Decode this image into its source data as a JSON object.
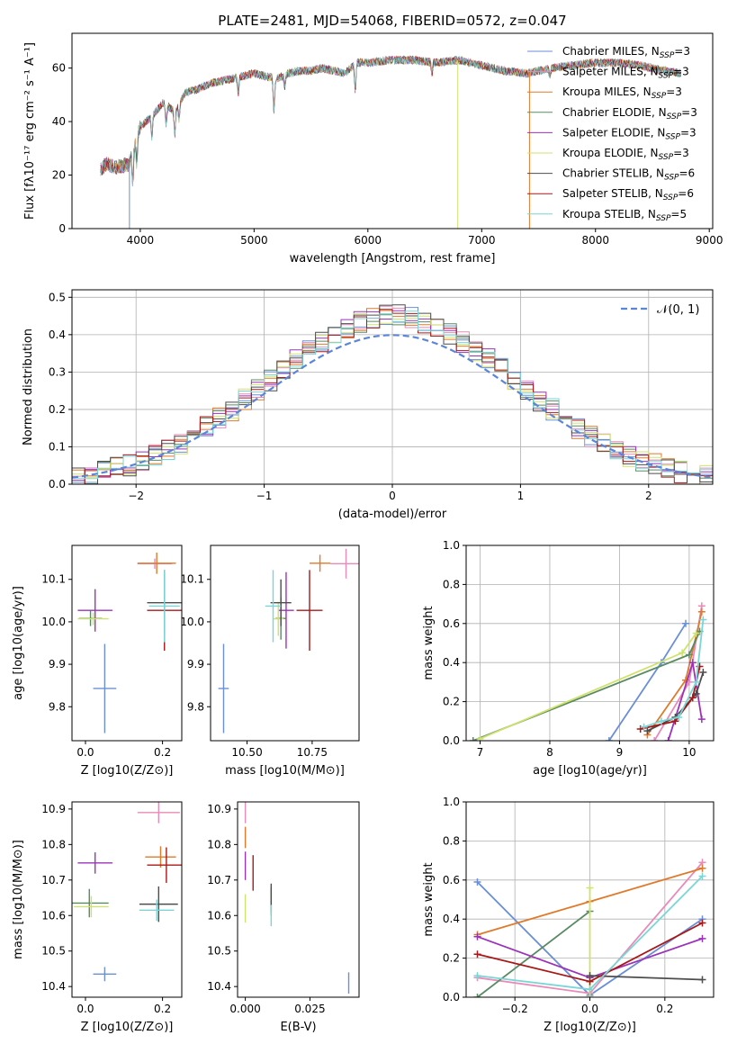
{
  "figure": {
    "title": "PLATE=2481, MJD=54068, FIBERID=0572, z=0.047",
    "colors": [
      "#6a8fd6",
      "#e98ab8",
      "#e07a2a",
      "#5a8a62",
      "#9b33b8",
      "#cfe26c",
      "#4d4d4d",
      "#a81818",
      "#7ad6d6"
    ]
  },
  "chart_data": [
    {
      "id": "spectrum",
      "type": "line",
      "xlabel": "wavelength [Angstrom, rest frame]",
      "ylabel": "Flux [fλ10⁻¹⁷ erg cm⁻² s⁻¹ A⁻¹]",
      "xlim": [
        3400,
        9030
      ],
      "ylim": [
        0,
        73
      ],
      "xticks": [
        4000,
        5000,
        6000,
        7000,
        8000,
        9000
      ],
      "yticks": [
        0,
        20,
        40,
        60
      ],
      "continuum": {
        "x": [
          3650,
          3700,
          3800,
          3900,
          3950,
          4000,
          4050,
          4100,
          4200,
          4300,
          4400,
          4500,
          4600,
          4700,
          4800,
          4900,
          5000,
          5100,
          5200,
          5300,
          5400,
          5500,
          5600,
          5700,
          5800,
          5900,
          6000,
          6200,
          6400,
          6600,
          6800,
          7000,
          7200,
          7400,
          7600,
          7800,
          8000,
          8200,
          8400,
          8600,
          8750
        ],
        "y": [
          22,
          24,
          23,
          24,
          32,
          38,
          40,
          42,
          47,
          44,
          51,
          52,
          54,
          55,
          56,
          57,
          58,
          57,
          56,
          58,
          59,
          59,
          60,
          59,
          58,
          62,
          62,
          63,
          63,
          62,
          63,
          61,
          59,
          58,
          60,
          61,
          62,
          62,
          61,
          59,
          58
        ]
      },
      "absorption_lines": [
        [
          3934,
          12
        ],
        [
          3969,
          10
        ],
        [
          4102,
          8
        ],
        [
          4227,
          7
        ],
        [
          4304,
          9
        ],
        [
          4341,
          6
        ],
        [
          4861,
          6
        ],
        [
          5175,
          12
        ],
        [
          5270,
          5
        ],
        [
          5890,
          10
        ],
        [
          6563,
          4
        ],
        [
          7600,
          3
        ]
      ],
      "dropouts": [
        3905,
        6790,
        7420
      ],
      "series": [
        {
          "name": "Chabrier MILES, N_SSP=3",
          "legend_main": "Chabrier MILES, N",
          "legend_sub": "SSP",
          "legend_tail": "=3"
        },
        {
          "name": "Salpeter MILES, N_SSP=3",
          "legend_main": "Salpeter MILES, N",
          "legend_sub": "SSP",
          "legend_tail": "=3"
        },
        {
          "name": "Kroupa MILES, N_SSP=3",
          "legend_main": "Kroupa MILES, N",
          "legend_sub": "SSP",
          "legend_tail": "=3"
        },
        {
          "name": "Chabrier ELODIE, N_SSP=3",
          "legend_main": "Chabrier ELODIE, N",
          "legend_sub": "SSP",
          "legend_tail": "=3"
        },
        {
          "name": "Salpeter ELODIE, N_SSP=3",
          "legend_main": "Salpeter ELODIE, N",
          "legend_sub": "SSP",
          "legend_tail": "=3"
        },
        {
          "name": "Kroupa ELODIE, N_SSP=3",
          "legend_main": "Kroupa ELODIE, N",
          "legend_sub": "SSP",
          "legend_tail": "=3"
        },
        {
          "name": "Chabrier STELIB, N_SSP=6",
          "legend_main": "Chabrier STELIB, N",
          "legend_sub": "SSP",
          "legend_tail": "=6"
        },
        {
          "name": "Salpeter STELIB, N_SSP=6",
          "legend_main": "Salpeter STELIB, N",
          "legend_sub": "SSP",
          "legend_tail": "=6"
        },
        {
          "name": "Kroupa STELIB, N_SSP=5",
          "legend_main": "Kroupa STELIB, N",
          "legend_sub": "SSP",
          "legend_tail": "=5"
        }
      ]
    },
    {
      "id": "residuals",
      "type": "line",
      "xlabel": "(data-model)/error",
      "ylabel": "Normed distribution",
      "xlim": [
        -2.5,
        2.5
      ],
      "ylim": [
        0,
        0.52
      ],
      "xticks": [
        -2,
        -1,
        0,
        1,
        2
      ],
      "yticks": [
        0.0,
        0.1,
        0.2,
        0.3,
        0.4,
        0.5
      ],
      "grid": true,
      "legend": "top-right",
      "reference": {
        "name": "N(0,1)",
        "mean": 0,
        "sigma": 1
      }
    },
    {
      "id": "age-vs-Z",
      "type": "scatter",
      "xlabel": "Z [log10(Z/Z⊙)]",
      "ylabel": "age  [log10(age/yr)]",
      "xlim": [
        -0.035,
        0.25
      ],
      "ylim": [
        9.72,
        10.18
      ],
      "xticks": [
        0.0,
        0.2
      ],
      "yticks": [
        9.8,
        9.9,
        10.0,
        10.1
      ],
      "points": [
        {
          "x": 0.05,
          "y": 9.843,
          "xerr": 0.03,
          "yerr": 0.105
        },
        {
          "x": 0.18,
          "y": 10.137,
          "xerr": 0.045,
          "yerr": 0.012
        },
        {
          "x": 0.185,
          "y": 10.138,
          "xerr": 0.05,
          "yerr": 0.025
        },
        {
          "x": 0.013,
          "y": 10.008,
          "xerr": 0.03,
          "yerr": 0.018
        },
        {
          "x": 0.025,
          "y": 10.027,
          "xerr": 0.045,
          "yerr": 0.05
        },
        {
          "x": 0.02,
          "y": 10.007,
          "xerr": 0.04,
          "yerr": 0.015
        },
        {
          "x": 0.205,
          "y": 10.045,
          "xerr": 0.045,
          "yerr": 0.065
        },
        {
          "x": 0.205,
          "y": 10.027,
          "xerr": 0.045,
          "yerr": 0.095
        },
        {
          "x": 0.205,
          "y": 10.037,
          "xerr": 0.04,
          "yerr": 0.085
        }
      ]
    },
    {
      "id": "age-vs-mass",
      "type": "scatter",
      "xlabel": "mass [log10(M/M⊙)]",
      "ylabel": "",
      "xlim": [
        10.36,
        10.93
      ],
      "ylim": [
        9.72,
        10.18
      ],
      "xticks": [
        10.5,
        10.75
      ],
      "yticks": [
        9.8,
        9.9,
        10.0,
        10.1
      ],
      "points": [
        {
          "x": 10.41,
          "y": 9.843,
          "xerr": 0.02,
          "yerr": 0.105
        },
        {
          "x": 10.88,
          "y": 10.137,
          "xerr": 0.06,
          "yerr": 0.035
        },
        {
          "x": 10.78,
          "y": 10.138,
          "xerr": 0.04,
          "yerr": 0.02
        },
        {
          "x": 10.63,
          "y": 10.008,
          "xerr": 0.02,
          "yerr": 0.05
        },
        {
          "x": 10.65,
          "y": 10.027,
          "xerr": 0.03,
          "yerr": 0.09
        },
        {
          "x": 10.62,
          "y": 10.007,
          "xerr": 0.02,
          "yerr": 0.04
        },
        {
          "x": 10.63,
          "y": 10.045,
          "xerr": 0.04,
          "yerr": 0.055
        },
        {
          "x": 10.74,
          "y": 10.027,
          "xerr": 0.05,
          "yerr": 0.095
        },
        {
          "x": 10.6,
          "y": 10.037,
          "xerr": 0.03,
          "yerr": 0.085
        }
      ]
    },
    {
      "id": "weight-vs-age",
      "type": "line",
      "xlabel": "age  [log10(age/yr)]",
      "ylabel": "mass weight",
      "xlim": [
        6.8,
        10.35
      ],
      "ylim": [
        0,
        1.0
      ],
      "xticks": [
        7,
        8,
        9,
        10
      ],
      "yticks": [
        0.0,
        0.2,
        0.4,
        0.6,
        0.8,
        1.0
      ],
      "grid": true,
      "series": [
        {
          "x": [
            8.85,
            9.6,
            9.95
          ],
          "y": [
            0.0,
            0.4,
            0.6
          ]
        },
        {
          "x": [
            9.5,
            10.0,
            10.18
          ],
          "y": [
            0.0,
            0.3,
            0.69
          ]
        },
        {
          "x": [
            9.4,
            9.95,
            10.18
          ],
          "y": [
            0.03,
            0.31,
            0.66
          ]
        },
        {
          "x": [
            6.9,
            10.0,
            10.15
          ],
          "y": [
            0.0,
            0.44,
            0.56
          ]
        },
        {
          "x": [
            9.7,
            10.05,
            10.18
          ],
          "y": [
            0.0,
            0.4,
            0.11
          ]
        },
        {
          "x": [
            7.0,
            9.9,
            10.1
          ],
          "y": [
            0.01,
            0.45,
            0.55
          ]
        },
        {
          "x": [
            9.4,
            9.8,
            10.1,
            10.2
          ],
          "y": [
            0.05,
            0.12,
            0.24,
            0.35
          ]
        },
        {
          "x": [
            9.3,
            9.8,
            10.05,
            10.15
          ],
          "y": [
            0.06,
            0.1,
            0.22,
            0.38
          ]
        },
        {
          "x": [
            9.35,
            9.6,
            9.85,
            10.1,
            10.2
          ],
          "y": [
            0.07,
            0.1,
            0.12,
            0.3,
            0.62
          ]
        }
      ]
    },
    {
      "id": "mass-vs-Z",
      "type": "scatter",
      "xlabel": "Z [log10(Z/Z⊙)]",
      "ylabel": "mass [log10(M/M⊙)]",
      "xlim": [
        -0.035,
        0.25
      ],
      "ylim": [
        10.37,
        10.92
      ],
      "xticks": [
        0.0,
        0.2
      ],
      "yticks": [
        10.4,
        10.5,
        10.6,
        10.7,
        10.8,
        10.9
      ],
      "points": [
        {
          "x": 0.05,
          "y": 10.435,
          "xerr": 0.03,
          "yerr": 0.02
        },
        {
          "x": 0.19,
          "y": 10.89,
          "xerr": 0.055,
          "yerr": 0.03
        },
        {
          "x": 0.195,
          "y": 10.765,
          "xerr": 0.04,
          "yerr": 0.03
        },
        {
          "x": 0.01,
          "y": 10.635,
          "xerr": 0.05,
          "yerr": 0.04
        },
        {
          "x": 0.025,
          "y": 10.748,
          "xerr": 0.045,
          "yerr": 0.03
        },
        {
          "x": 0.015,
          "y": 10.625,
          "xerr": 0.045,
          "yerr": 0.03
        },
        {
          "x": 0.19,
          "y": 10.632,
          "xerr": 0.05,
          "yerr": 0.05
        },
        {
          "x": 0.21,
          "y": 10.742,
          "xerr": 0.05,
          "yerr": 0.05
        },
        {
          "x": 0.185,
          "y": 10.615,
          "xerr": 0.045,
          "yerr": 0.03
        }
      ]
    },
    {
      "id": "mass-vs-ebv",
      "type": "scatter",
      "xlabel": "E(B-V)",
      "ylabel": "",
      "xlim": [
        -0.003,
        0.044
      ],
      "ylim": [
        10.37,
        10.92
      ],
      "xticks": [
        0.0,
        0.025
      ],
      "xtick_labels": [
        "0.000",
        "0.025"
      ],
      "yticks": [
        10.4,
        10.5,
        10.6,
        10.7,
        10.8,
        10.9
      ],
      "points": [
        {
          "x": 0.04,
          "y": 10.41,
          "xerr": 0,
          "yerr": 0.03
        },
        {
          "x": 0.0,
          "y": 10.89,
          "xerr": 0,
          "yerr": 0.03
        },
        {
          "x": 0.0,
          "y": 10.82,
          "xerr": 0,
          "yerr": 0.03
        },
        {
          "x": 0.01,
          "y": 10.64,
          "xerr": 0,
          "yerr": 0.04
        },
        {
          "x": 0.0,
          "y": 10.74,
          "xerr": 0,
          "yerr": 0.04
        },
        {
          "x": 0.0,
          "y": 10.62,
          "xerr": 0,
          "yerr": 0.04
        },
        {
          "x": 0.01,
          "y": 10.65,
          "xerr": 0,
          "yerr": 0.04
        },
        {
          "x": 0.003,
          "y": 10.72,
          "xerr": 0,
          "yerr": 0.05
        },
        {
          "x": 0.01,
          "y": 10.6,
          "xerr": 0,
          "yerr": 0.03
        }
      ]
    },
    {
      "id": "weight-vs-Z",
      "type": "line",
      "xlabel": "Z [log10(Z/Z⊙)]",
      "ylabel": "mass weight",
      "xlim": [
        -0.33,
        0.33
      ],
      "ylim": [
        0,
        1.0
      ],
      "xticks": [
        -0.2,
        0.0,
        0.2
      ],
      "yticks": [
        0.0,
        0.2,
        0.4,
        0.6,
        0.8,
        1.0
      ],
      "grid": true,
      "series": [
        {
          "x": [
            -0.3,
            0.0,
            0.3
          ],
          "y": [
            0.59,
            0.01,
            0.4
          ]
        },
        {
          "x": [
            -0.3,
            0.0,
            0.3
          ],
          "y": [
            0.1,
            0.02,
            0.69
          ]
        },
        {
          "x": [
            -0.3,
            0.0,
            0.3
          ],
          "y": [
            0.32,
            0.49,
            0.66
          ]
        },
        {
          "x": [
            -0.3,
            0.0
          ],
          "y": [
            0.0,
            0.44
          ]
        },
        {
          "x": [
            -0.3,
            0.0,
            0.3
          ],
          "y": [
            0.31,
            0.1,
            0.3
          ]
        },
        {
          "x": [
            0.0,
            0.0
          ],
          "y": [
            0.56,
            0.0
          ]
        },
        {
          "x": [
            0.0,
            0.3
          ],
          "y": [
            0.11,
            0.09
          ]
        },
        {
          "x": [
            -0.3,
            0.0,
            0.3
          ],
          "y": [
            0.22,
            0.08,
            0.38
          ]
        },
        {
          "x": [
            -0.3,
            0.0,
            0.3
          ],
          "y": [
            0.11,
            0.04,
            0.62
          ]
        }
      ]
    }
  ]
}
